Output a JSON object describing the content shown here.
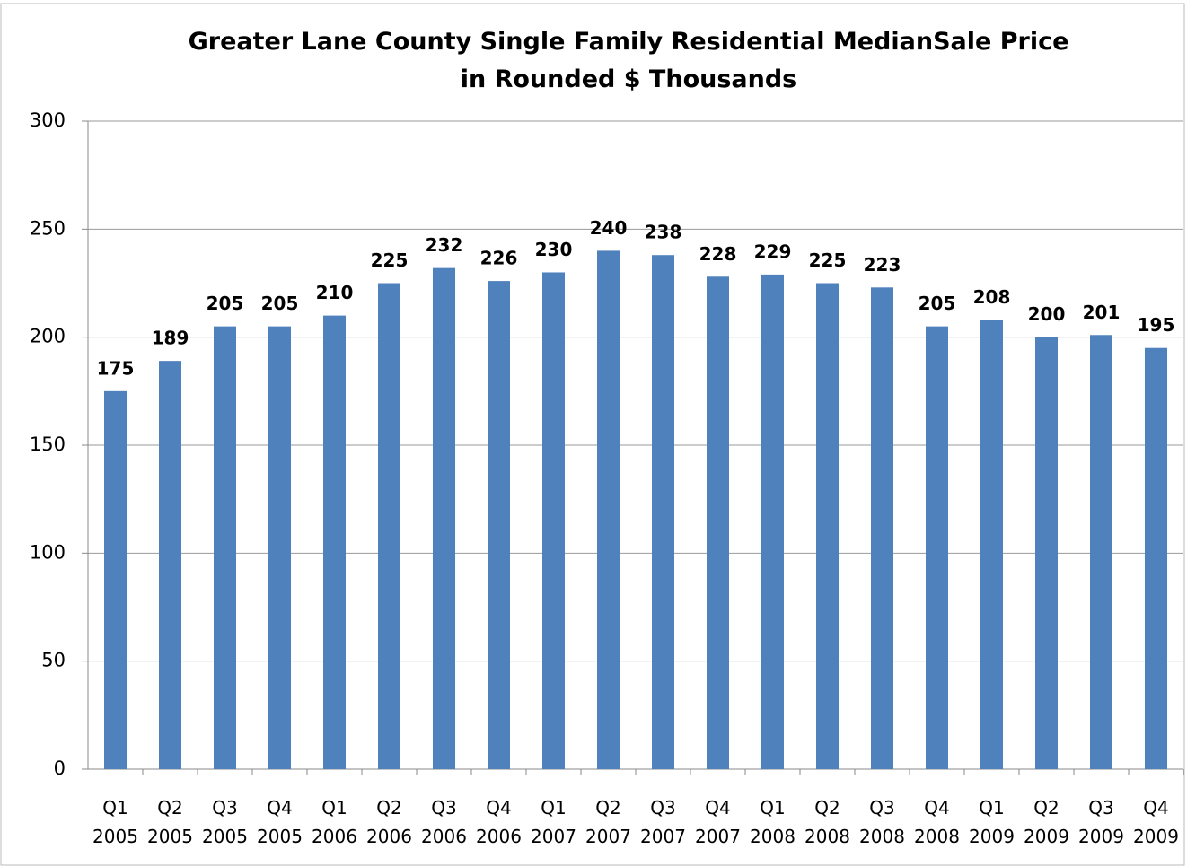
{
  "chart_data": {
    "type": "bar",
    "title": "Greater Lane County Single Family Residential MedianSale Price in Rounded $ Thousands",
    "categories": [
      "Q1 2005",
      "Q2 2005",
      "Q3 2005",
      "Q4 2005",
      "Q1 2006",
      "Q2 2006",
      "Q3 2006",
      "Q4 2006",
      "Q1 2007",
      "Q2 2007",
      "Q3 2007",
      "Q4 2007",
      "Q1 2008",
      "Q2 2008",
      "Q3 2008",
      "Q4 2008",
      "Q1 2009",
      "Q2 2009",
      "Q3 2009",
      "Q4 2009"
    ],
    "values": [
      175,
      189,
      205,
      205,
      210,
      225,
      232,
      226,
      230,
      240,
      238,
      228,
      229,
      225,
      223,
      205,
      208,
      200,
      201,
      195
    ],
    "color": "#4f81bd",
    "ylim": [
      0,
      300
    ],
    "yticks": [
      0,
      50,
      100,
      150,
      200,
      250,
      300
    ],
    "grid": true
  }
}
